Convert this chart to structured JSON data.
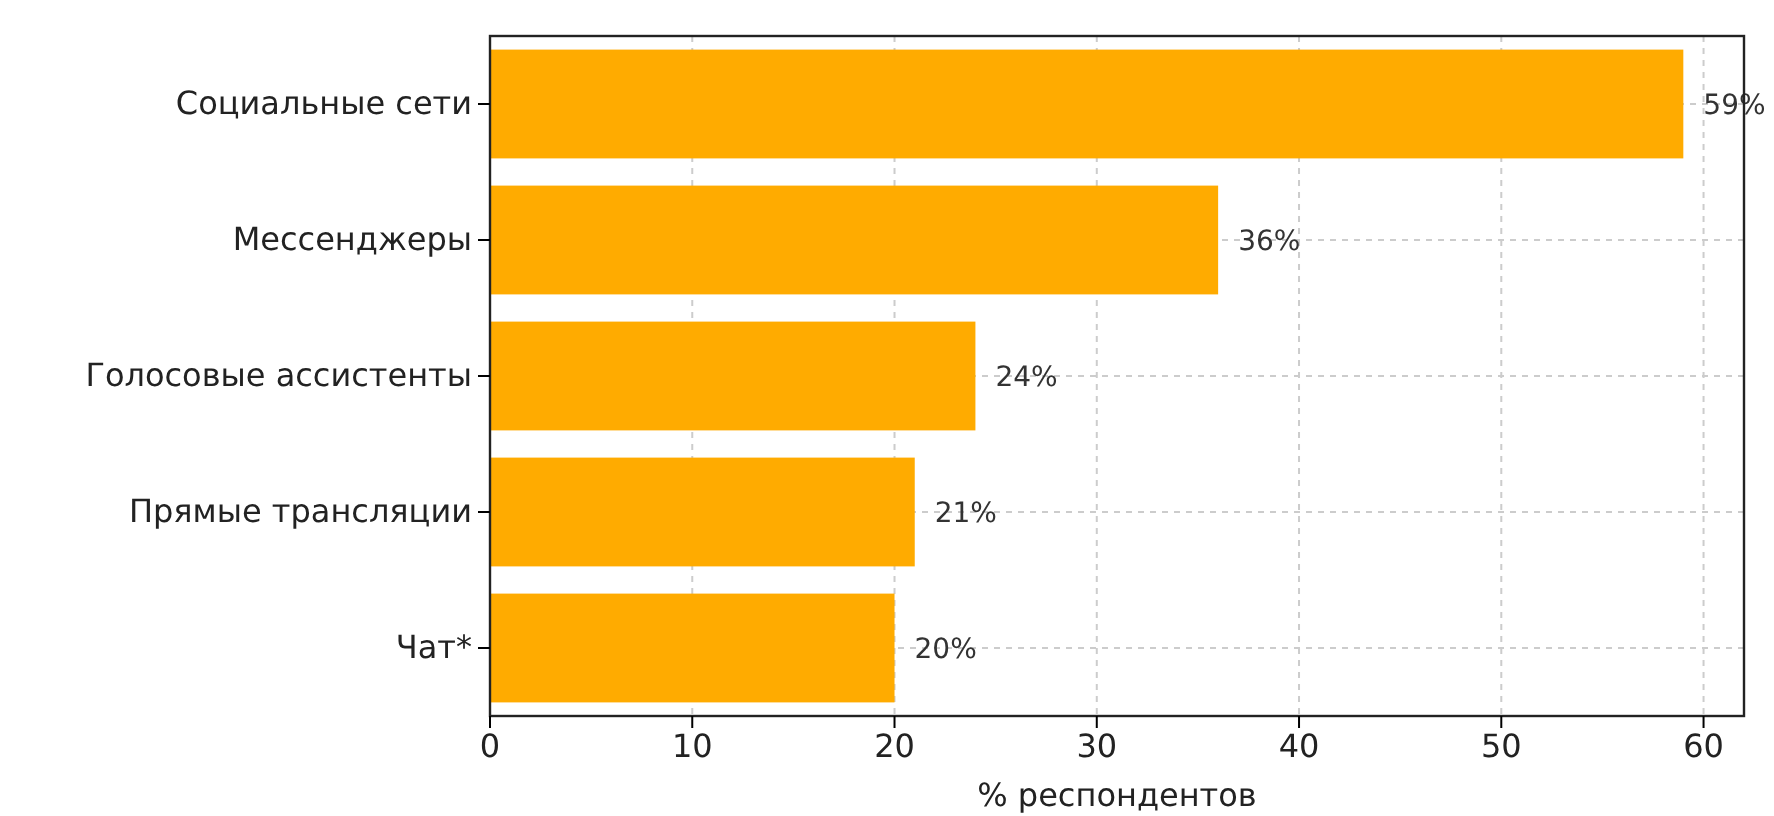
{
  "chart_data": {
    "type": "bar",
    "orientation": "horizontal",
    "xlabel": "% респондентов",
    "categories": [
      "Социальные сети",
      "Мессенджеры",
      "Голосовые ассистенты",
      "Прямые трансляции",
      "Чат*"
    ],
    "values": [
      59,
      36,
      24,
      21,
      20
    ],
    "value_labels": [
      "59%",
      "36%",
      "24%",
      "21%",
      "20%"
    ],
    "color": "#ffab00",
    "xlim": [
      0,
      62
    ],
    "xticks": [
      0,
      10,
      20,
      30,
      40,
      50,
      60
    ],
    "grid": true
  }
}
